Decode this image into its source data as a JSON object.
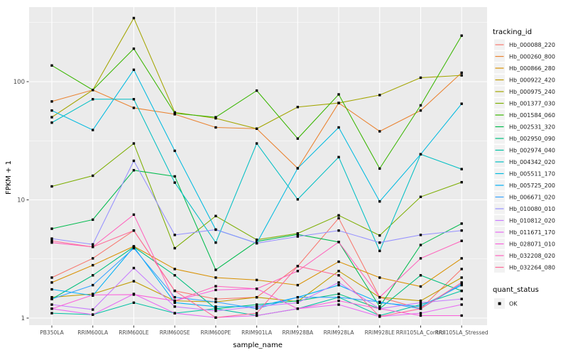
{
  "figure": {
    "background": "#FFFFFF",
    "panel_background": "#EBEBEB",
    "grid_color": "#FFFFFF",
    "tick_label_color": "#4D4D4D",
    "text_color": "#000000",
    "point_color": "#000000",
    "legend_key_fill": "#F2F2F2"
  },
  "chart_data": {
    "type": "line",
    "title": "",
    "xlabel": "sample_name",
    "ylabel": "FPKM + 1",
    "y_scale": "log10",
    "y_ticks": [
      1,
      10,
      100
    ],
    "y_minor_ticks": [
      3.162,
      31.62,
      316.2
    ],
    "ylim": [
      1,
      430
    ],
    "grid": true,
    "legend_position": "right",
    "legend_title": "tracking_id",
    "point_legend_title": "quant_status",
    "point_legend_label": "OK",
    "point_shape": "square",
    "categories": [
      "PB350LA",
      "RRIM600LA",
      "RRIM600LE",
      "RRIM600SE",
      "RRIM600PE",
      "RRIM901LA",
      "RRIM928BA",
      "RRIM928LA",
      "RRIM928LE",
      "RRII105LA_Control",
      "RRII105LA_Stressed"
    ],
    "series": [
      {
        "name": "Hb_000088_220",
        "color": "#F8766D",
        "values": [
          2.2,
          3.2,
          5.5,
          1.7,
          1.45,
          1.5,
          2.75,
          7.0,
          1.5,
          1.2,
          2.6
        ]
      },
      {
        "name": "Hb_000260_800",
        "color": "#EA8331",
        "values": [
          68,
          85,
          60,
          53,
          41,
          40,
          18.5,
          66,
          38,
          57,
          119
        ]
      },
      {
        "name": "Hb_000866_280",
        "color": "#D89000",
        "values": [
          2.0,
          2.8,
          4.05,
          2.6,
          2.2,
          2.1,
          1.9,
          3.0,
          2.2,
          1.85,
          3.2
        ]
      },
      {
        "name": "Hb_000922_420",
        "color": "#C09B00",
        "values": [
          1.5,
          1.6,
          2.05,
          1.4,
          1.37,
          1.5,
          1.38,
          2.5,
          1.5,
          1.4,
          2.2
        ]
      },
      {
        "name": "Hb_000975_240",
        "color": "#A3A500",
        "values": [
          50,
          85,
          345,
          55,
          49,
          40,
          61,
          66,
          77,
          108,
          113
        ]
      },
      {
        "name": "Hb_001377_030",
        "color": "#7CAE00",
        "values": [
          13,
          16,
          30,
          3.9,
          7.3,
          4.6,
          5.2,
          7.4,
          5.0,
          10.6,
          14.1
        ]
      },
      {
        "name": "Hb_001584_060",
        "color": "#39B600",
        "values": [
          137,
          85,
          190,
          54,
          50,
          84,
          33,
          78,
          18.4,
          63,
          245
        ]
      },
      {
        "name": "Hb_002531_320",
        "color": "#00BB4E",
        "values": [
          5.7,
          6.8,
          17.8,
          15.8,
          2.56,
          4.45,
          5.1,
          4.4,
          1.25,
          4.15,
          6.3
        ]
      },
      {
        "name": "Hb_002950_090",
        "color": "#00BF7D",
        "values": [
          1.45,
          2.3,
          4.0,
          2.3,
          1.2,
          1.3,
          1.4,
          1.6,
          1.2,
          2.3,
          1.7
        ]
      },
      {
        "name": "Hb_002974_040",
        "color": "#00C1A3",
        "values": [
          1.1,
          1.07,
          1.35,
          1.1,
          1.2,
          1.05,
          1.2,
          1.5,
          1.05,
          1.3,
          1.7
        ]
      },
      {
        "name": "Hb_004342_020",
        "color": "#00BFC4",
        "values": [
          45,
          71,
          71,
          14,
          4.35,
          30,
          10.1,
          23,
          3.7,
          24.3,
          18.2
        ]
      },
      {
        "name": "Hb_005511_170",
        "color": "#00BAE0",
        "values": [
          57,
          39,
          126,
          26,
          5.6,
          4.3,
          18.5,
          41,
          9.7,
          24.3,
          65
        ]
      },
      {
        "name": "Hb_005725_200",
        "color": "#00B0F6",
        "values": [
          1.75,
          1.55,
          4.0,
          1.35,
          1.25,
          1.25,
          1.5,
          1.9,
          1.35,
          1.25,
          1.9
        ]
      },
      {
        "name": "Hb_006671_020",
        "color": "#35A2FF",
        "values": [
          1.45,
          1.9,
          3.9,
          1.5,
          1.37,
          1.2,
          1.5,
          1.5,
          1.37,
          1.2,
          1.95
        ]
      },
      {
        "name": "Hb_010080_010",
        "color": "#9590FF",
        "values": [
          4.7,
          4.2,
          21.4,
          5.05,
          5.6,
          4.3,
          4.9,
          5.5,
          4.35,
          5.05,
          5.5
        ]
      },
      {
        "name": "Hb_010812_020",
        "color": "#C77CFF",
        "values": [
          1.3,
          1.18,
          2.65,
          1.25,
          1.15,
          1.25,
          1.35,
          2.0,
          1.2,
          1.35,
          1.45
        ]
      },
      {
        "name": "Hb_011671_170",
        "color": "#E76BF3",
        "values": [
          1.2,
          1.07,
          1.6,
          1.1,
          1.01,
          1.05,
          1.2,
          1.3,
          1.03,
          1.1,
          1.3
        ]
      },
      {
        "name": "Hb_028071_010",
        "color": "#FA62DB",
        "values": [
          1.2,
          1.57,
          1.58,
          1.4,
          1.73,
          1.77,
          1.2,
          1.4,
          1.2,
          1.05,
          1.05
        ]
      },
      {
        "name": "Hb_032208_020",
        "color": "#FF62BC",
        "values": [
          4.35,
          4.0,
          7.5,
          1.4,
          1.86,
          1.77,
          2.5,
          4.4,
          1.5,
          3.2,
          4.5
        ]
      },
      {
        "name": "Hb_032264_080",
        "color": "#FF6A98",
        "values": [
          4.5,
          4.0,
          5.5,
          1.7,
          1.01,
          1.1,
          2.75,
          2.3,
          1.03,
          1.2,
          2.0
        ]
      }
    ]
  }
}
